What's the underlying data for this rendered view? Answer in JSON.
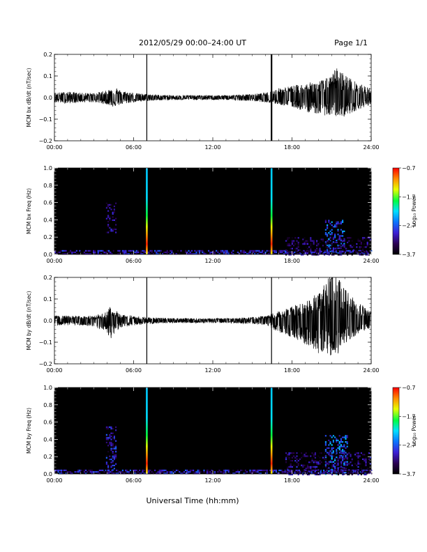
{
  "header": {
    "title": "2012/05/29  00:00–24:00 UT",
    "page": "Page 1/1"
  },
  "xlabel": "Universal Time (hh:mm)",
  "colorbar_label": "Log₁₀ Power",
  "chart_data": [
    {
      "type": "line",
      "ylabel": "MCM bx dB/dt (nT/sec)",
      "xlim": [
        0,
        24
      ],
      "x_ticks": [
        0,
        6,
        12,
        18,
        24
      ],
      "x_tick_labels": [
        "00:00",
        "06:00",
        "12:00",
        "18:00",
        "24:00"
      ],
      "ylim": [
        -0.2,
        0.2
      ],
      "y_ticks": [
        -0.2,
        -0.1,
        0.0,
        0.1,
        0.2
      ],
      "y_tick_labels": [
        "−0.2",
        "−0.1",
        "0.0",
        "0.1",
        "0.2"
      ],
      "series": [
        {
          "x": [
            0,
            1,
            2,
            3,
            4,
            4.5,
            5,
            6,
            7,
            8,
            9,
            10,
            11,
            12,
            13,
            14,
            15,
            16,
            17,
            18,
            19,
            20,
            21,
            21.3,
            22,
            23,
            24
          ],
          "y_upper": [
            0.02,
            0.025,
            0.02,
            0.02,
            0.03,
            0.05,
            0.03,
            0.02,
            0.015,
            0.012,
            0.01,
            0.01,
            0.01,
            0.01,
            0.01,
            0.012,
            0.015,
            0.02,
            0.04,
            0.05,
            0.06,
            0.07,
            0.09,
            0.13,
            0.1,
            0.06,
            0.04
          ],
          "y_lower": [
            -0.02,
            -0.025,
            -0.02,
            -0.02,
            -0.03,
            -0.04,
            -0.03,
            -0.02,
            -0.015,
            -0.012,
            -0.01,
            -0.01,
            -0.01,
            -0.01,
            -0.01,
            -0.012,
            -0.015,
            -0.02,
            -0.03,
            -0.04,
            -0.06,
            -0.07,
            -0.08,
            -0.08,
            -0.08,
            -0.05,
            -0.03
          ]
        }
      ],
      "spikes": [
        {
          "x": 7.0,
          "y_range": [
            -0.2,
            0.2
          ]
        },
        {
          "x": 16.45,
          "y_range": [
            -0.2,
            0.2
          ]
        }
      ]
    },
    {
      "type": "heatmap",
      "ylabel": "MCM bx Freq (Hz)",
      "xlim": [
        0,
        24
      ],
      "x_ticks": [
        0,
        6,
        12,
        18,
        24
      ],
      "x_tick_labels": [
        "00:00",
        "06:00",
        "12:00",
        "18:00",
        "24:00"
      ],
      "ylim": [
        0,
        1.0
      ],
      "y_ticks": [
        0.0,
        0.2,
        0.4,
        0.6,
        0.8,
        1.0
      ],
      "y_tick_labels": [
        "0.0",
        "0.2",
        "0.4",
        "0.6",
        "0.8",
        "1.0"
      ],
      "colorbar": {
        "range": [
          -3.7,
          -0.7
        ],
        "ticks": [
          -0.7,
          -1.7,
          -2.7,
          -3.7
        ],
        "tick_labels": [
          "−0.7",
          "−1.7",
          "−2.7",
          "−3.7"
        ]
      },
      "features": [
        {
          "x_range": [
            0,
            24
          ],
          "f_range": [
            0,
            0.05
          ],
          "log_power": -3.0
        },
        {
          "x_range": [
            3.9,
            4.6
          ],
          "f_range": [
            0.25,
            0.6
          ],
          "log_power": -3.2
        },
        {
          "x_range": [
            20.5,
            22.0
          ],
          "f_range": [
            0.0,
            0.4
          ],
          "log_power": -2.7
        },
        {
          "x_range": [
            17.5,
            24
          ],
          "f_range": [
            0.0,
            0.2
          ],
          "log_power": -3.3
        }
      ],
      "spikes": [
        {
          "x": 7.0,
          "f_range": [
            0,
            1.0
          ]
        },
        {
          "x": 16.45,
          "f_range": [
            0,
            1.0
          ]
        }
      ]
    },
    {
      "type": "line",
      "ylabel": "MCM by dB/dt (nT/sec)",
      "xlim": [
        0,
        24
      ],
      "x_ticks": [
        0,
        6,
        12,
        18,
        24
      ],
      "x_tick_labels": [
        "00:00",
        "06:00",
        "12:00",
        "18:00",
        "24:00"
      ],
      "ylim": [
        -0.2,
        0.2
      ],
      "y_ticks": [
        -0.2,
        -0.1,
        0.0,
        0.1,
        0.2
      ],
      "y_tick_labels": [
        "−0.2",
        "−0.1",
        "0.0",
        "0.1",
        "0.2"
      ],
      "series": [
        {
          "x": [
            0,
            1,
            2,
            3,
            4,
            4.2,
            5,
            6,
            7,
            8,
            9,
            10,
            11,
            12,
            13,
            14,
            15,
            16,
            17,
            18,
            19,
            20,
            21,
            21.5,
            22,
            23,
            24
          ],
          "y_upper": [
            0.02,
            0.02,
            0.02,
            0.02,
            0.04,
            0.06,
            0.03,
            0.02,
            0.015,
            0.012,
            0.01,
            0.01,
            0.01,
            0.01,
            0.01,
            0.012,
            0.015,
            0.02,
            0.04,
            0.06,
            0.08,
            0.12,
            0.2,
            0.19,
            0.14,
            0.08,
            0.04
          ],
          "y_lower": [
            -0.02,
            -0.02,
            -0.02,
            -0.03,
            -0.05,
            -0.08,
            -0.03,
            -0.02,
            -0.015,
            -0.012,
            -0.01,
            -0.01,
            -0.01,
            -0.01,
            -0.01,
            -0.012,
            -0.015,
            -0.02,
            -0.05,
            -0.07,
            -0.1,
            -0.14,
            -0.15,
            -0.14,
            -0.1,
            -0.06,
            -0.03
          ]
        }
      ],
      "spikes": [
        {
          "x": 7.0,
          "y_range": [
            -0.2,
            0.2
          ]
        },
        {
          "x": 16.45,
          "y_range": [
            -0.2,
            0.2
          ]
        }
      ]
    },
    {
      "type": "heatmap",
      "ylabel": "MCM by Freq (Hz)",
      "xlim": [
        0,
        24
      ],
      "x_ticks": [
        0,
        6,
        12,
        18,
        24
      ],
      "x_tick_labels": [
        "00:00",
        "06:00",
        "12:00",
        "18:00",
        "24:00"
      ],
      "ylim": [
        0,
        1.0
      ],
      "y_ticks": [
        0.0,
        0.2,
        0.4,
        0.6,
        0.8,
        1.0
      ],
      "y_tick_labels": [
        "0.0",
        "0.2",
        "0.4",
        "0.6",
        "0.8",
        "1.0"
      ],
      "colorbar": {
        "range": [
          -3.7,
          -0.7
        ],
        "ticks": [
          -0.7,
          -1.7,
          -2.7,
          -3.7
        ],
        "tick_labels": [
          "−0.7",
          "−1.7",
          "−2.7",
          "−3.7"
        ]
      },
      "features": [
        {
          "x_range": [
            0,
            24
          ],
          "f_range": [
            0,
            0.05
          ],
          "log_power": -3.0
        },
        {
          "x_range": [
            3.9,
            4.6
          ],
          "f_range": [
            0.05,
            0.55
          ],
          "log_power": -3.0
        },
        {
          "x_range": [
            20.5,
            22.2
          ],
          "f_range": [
            0.0,
            0.45
          ],
          "log_power": -2.6
        },
        {
          "x_range": [
            17.5,
            24
          ],
          "f_range": [
            0.0,
            0.25
          ],
          "log_power": -3.2
        }
      ],
      "spikes": [
        {
          "x": 7.0,
          "f_range": [
            0,
            1.0
          ]
        },
        {
          "x": 16.45,
          "f_range": [
            0,
            1.0
          ]
        }
      ]
    }
  ]
}
